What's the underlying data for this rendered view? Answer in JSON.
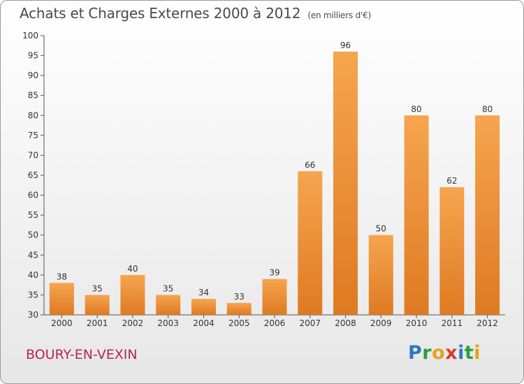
{
  "header": {
    "title": "Achats et Charges Externes 2000 à 2012",
    "subtitle": "(en milliers d'€)"
  },
  "footer": {
    "commune": "BOURY-EN-VEXIN",
    "logo_letters": [
      "P",
      "r",
      "o",
      "x",
      "i",
      "t",
      "i"
    ],
    "logo_colors": [
      "#2e78c5",
      "#2e9e3e",
      "#e8a21b",
      "#d93a2b",
      "#2e78c5",
      "#2e9e3e",
      "#e8a21b"
    ]
  },
  "colors": {
    "bar_top": "#f6a54f",
    "bar_bottom": "#de7a22",
    "axis": "#555555",
    "grid_tick": "#555555"
  },
  "chart_data": {
    "type": "bar",
    "categories": [
      "2000",
      "2001",
      "2002",
      "2003",
      "2004",
      "2005",
      "2006",
      "2007",
      "2008",
      "2009",
      "2010",
      "2011",
      "2012"
    ],
    "values": [
      38,
      35,
      40,
      35,
      34,
      33,
      39,
      66,
      96,
      50,
      80,
      62,
      80
    ],
    "ylim": [
      30,
      100
    ],
    "yticks": [
      30,
      35,
      40,
      45,
      50,
      55,
      60,
      65,
      70,
      75,
      80,
      85,
      90,
      95,
      100
    ],
    "grid": false,
    "legend": "none"
  }
}
